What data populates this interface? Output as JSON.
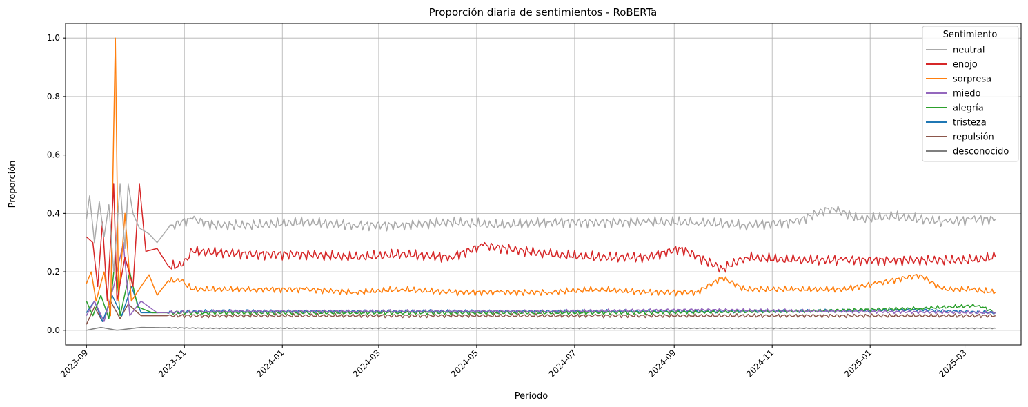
{
  "chart_data": {
    "type": "line",
    "title": "Proporción diaria de sentimientos - RoBERTa",
    "xlabel": "Periodo",
    "ylabel": "Proporción",
    "x_tick_labels": [
      "2023-09",
      "2023-11",
      "2024-01",
      "2024-03",
      "2024-05",
      "2024-07",
      "2024-09",
      "2024-11",
      "2025-01",
      "2025-03"
    ],
    "y_tick_labels": [
      "0.0",
      "0.2",
      "0.4",
      "0.6",
      "0.8",
      "1.0"
    ],
    "y_ticks": [
      0,
      0.2,
      0.4,
      0.6,
      0.8,
      1.0
    ],
    "xlim": [
      "2023-08-19",
      "2025-04-05"
    ],
    "ylim": [
      -0.05,
      1.05
    ],
    "x_start": "2023-09-01",
    "x_end": "2025-03-20",
    "grid": true,
    "legend": {
      "title": "Sentimiento",
      "position": "top-right"
    },
    "series": [
      {
        "name": "neutral",
        "color": "#aaaaaa",
        "points": [
          [
            "2023-09-01",
            0.38
          ],
          [
            "2023-09-03",
            0.46
          ],
          [
            "2023-09-06",
            0.3
          ],
          [
            "2023-09-09",
            0.44
          ],
          [
            "2023-09-12",
            0.32
          ],
          [
            "2023-09-15",
            0.43
          ],
          [
            "2023-09-18",
            0.2
          ],
          [
            "2023-09-22",
            0.5
          ],
          [
            "2023-09-25",
            0.28
          ],
          [
            "2023-09-27",
            0.5
          ],
          [
            "2023-09-30",
            0.4
          ],
          [
            "2023-10-04",
            0.35
          ],
          [
            "2023-10-10",
            0.33
          ],
          [
            "2023-10-15",
            0.3
          ],
          [
            "2023-10-22",
            0.35
          ],
          [
            "2023-10-30",
            0.37
          ],
          [
            "2023-11-06",
            0.38
          ],
          [
            "2023-11-20",
            0.36
          ],
          [
            "2023-12-15",
            0.36
          ],
          [
            "2024-01-15",
            0.37
          ],
          [
            "2024-02-15",
            0.36
          ],
          [
            "2024-03-15",
            0.36
          ],
          [
            "2024-04-15",
            0.37
          ],
          [
            "2024-05-15",
            0.36
          ],
          [
            "2024-06-15",
            0.37
          ],
          [
            "2024-07-15",
            0.37
          ],
          [
            "2024-08-15",
            0.37
          ],
          [
            "2024-09-15",
            0.37
          ],
          [
            "2024-10-15",
            0.36
          ],
          [
            "2024-11-15",
            0.37
          ],
          [
            "2024-12-08",
            0.42
          ],
          [
            "2024-12-25",
            0.38
          ],
          [
            "2025-01-15",
            0.39
          ],
          [
            "2025-02-01",
            0.38
          ],
          [
            "2025-02-18",
            0.37
          ],
          [
            "2025-03-05",
            0.38
          ],
          [
            "2025-03-20",
            0.38
          ]
        ]
      },
      {
        "name": "enojo",
        "color": "#d62728",
        "points": [
          [
            "2023-09-01",
            0.32
          ],
          [
            "2023-09-05",
            0.3
          ],
          [
            "2023-09-08",
            0.15
          ],
          [
            "2023-09-11",
            0.37
          ],
          [
            "2023-09-14",
            0.1
          ],
          [
            "2023-09-18",
            0.5
          ],
          [
            "2023-09-20",
            0.1
          ],
          [
            "2023-09-25",
            0.25
          ],
          [
            "2023-09-30",
            0.15
          ],
          [
            "2023-10-04",
            0.5
          ],
          [
            "2023-10-08",
            0.27
          ],
          [
            "2023-10-15",
            0.28
          ],
          [
            "2023-10-22",
            0.22
          ],
          [
            "2023-10-30",
            0.22
          ],
          [
            "2023-11-06",
            0.27
          ],
          [
            "2023-12-15",
            0.26
          ],
          [
            "2024-01-15",
            0.26
          ],
          [
            "2024-02-15",
            0.25
          ],
          [
            "2024-03-15",
            0.26
          ],
          [
            "2024-04-15",
            0.25
          ],
          [
            "2024-05-05",
            0.29
          ],
          [
            "2024-06-15",
            0.26
          ],
          [
            "2024-07-15",
            0.25
          ],
          [
            "2024-08-15",
            0.25
          ],
          [
            "2024-09-05",
            0.28
          ],
          [
            "2024-10-01",
            0.21
          ],
          [
            "2024-10-15",
            0.25
          ],
          [
            "2024-11-15",
            0.24
          ],
          [
            "2024-12-15",
            0.24
          ],
          [
            "2025-01-15",
            0.24
          ],
          [
            "2025-02-15",
            0.24
          ],
          [
            "2025-03-05",
            0.24
          ],
          [
            "2025-03-20",
            0.25
          ]
        ]
      },
      {
        "name": "sorpresa",
        "color": "#ff7f0e",
        "points": [
          [
            "2023-09-01",
            0.16
          ],
          [
            "2023-09-04",
            0.2
          ],
          [
            "2023-09-07",
            0.1
          ],
          [
            "2023-09-12",
            0.2
          ],
          [
            "2023-09-16",
            0.05
          ],
          [
            "2023-09-19",
            1.0
          ],
          [
            "2023-09-21",
            0.1
          ],
          [
            "2023-09-25",
            0.4
          ],
          [
            "2023-09-29",
            0.1
          ],
          [
            "2023-10-05",
            0.15
          ],
          [
            "2023-10-10",
            0.19
          ],
          [
            "2023-10-15",
            0.12
          ],
          [
            "2023-10-22",
            0.17
          ],
          [
            "2023-10-30",
            0.17
          ],
          [
            "2023-11-06",
            0.14
          ],
          [
            "2023-12-15",
            0.14
          ],
          [
            "2024-01-15",
            0.14
          ],
          [
            "2024-02-15",
            0.13
          ],
          [
            "2024-03-15",
            0.14
          ],
          [
            "2024-04-15",
            0.13
          ],
          [
            "2024-05-15",
            0.13
          ],
          [
            "2024-06-15",
            0.13
          ],
          [
            "2024-07-15",
            0.14
          ],
          [
            "2024-08-15",
            0.13
          ],
          [
            "2024-09-15",
            0.13
          ],
          [
            "2024-10-01",
            0.18
          ],
          [
            "2024-10-15",
            0.14
          ],
          [
            "2024-11-15",
            0.14
          ],
          [
            "2024-12-15",
            0.14
          ],
          [
            "2025-01-05",
            0.16
          ],
          [
            "2025-02-01",
            0.19
          ],
          [
            "2025-02-15",
            0.14
          ],
          [
            "2025-03-05",
            0.14
          ],
          [
            "2025-03-20",
            0.13
          ]
        ]
      },
      {
        "name": "miedo",
        "color": "#9467bd",
        "points": [
          [
            "2023-09-01",
            0.05
          ],
          [
            "2023-09-06",
            0.1
          ],
          [
            "2023-09-12",
            0.03
          ],
          [
            "2023-09-18",
            0.15
          ],
          [
            "2023-09-24",
            0.3
          ],
          [
            "2023-09-28",
            0.05
          ],
          [
            "2023-10-05",
            0.1
          ],
          [
            "2023-10-15",
            0.06
          ],
          [
            "2023-11-15",
            0.065
          ],
          [
            "2024-02-15",
            0.065
          ],
          [
            "2024-06-15",
            0.065
          ],
          [
            "2024-09-15",
            0.07
          ],
          [
            "2024-12-15",
            0.065
          ],
          [
            "2025-03-20",
            0.06
          ]
        ]
      },
      {
        "name": "alegría",
        "color": "#2ca02c",
        "points": [
          [
            "2023-09-01",
            0.1
          ],
          [
            "2023-09-05",
            0.05
          ],
          [
            "2023-09-10",
            0.12
          ],
          [
            "2023-09-15",
            0.04
          ],
          [
            "2023-09-19",
            0.25
          ],
          [
            "2023-09-22",
            0.05
          ],
          [
            "2023-09-28",
            0.2
          ],
          [
            "2023-10-03",
            0.08
          ],
          [
            "2023-10-12",
            0.06
          ],
          [
            "2023-11-15",
            0.06
          ],
          [
            "2024-03-15",
            0.06
          ],
          [
            "2024-07-15",
            0.06
          ],
          [
            "2024-11-15",
            0.065
          ],
          [
            "2025-02-01",
            0.075
          ],
          [
            "2025-03-10",
            0.085
          ],
          [
            "2025-03-20",
            0.06
          ]
        ]
      },
      {
        "name": "tristeza",
        "color": "#1f77b4",
        "points": [
          [
            "2023-09-01",
            0.06
          ],
          [
            "2023-09-06",
            0.1
          ],
          [
            "2023-09-11",
            0.03
          ],
          [
            "2023-09-17",
            0.12
          ],
          [
            "2023-09-23",
            0.05
          ],
          [
            "2023-09-29",
            0.15
          ],
          [
            "2023-10-05",
            0.06
          ],
          [
            "2023-10-15",
            0.06
          ],
          [
            "2023-11-15",
            0.065
          ],
          [
            "2024-03-15",
            0.065
          ],
          [
            "2024-07-15",
            0.065
          ],
          [
            "2024-11-15",
            0.065
          ],
          [
            "2025-02-01",
            0.07
          ],
          [
            "2025-03-20",
            0.06
          ]
        ]
      },
      {
        "name": "repulsión",
        "color": "#8c564b",
        "points": [
          [
            "2023-09-01",
            0.02
          ],
          [
            "2023-09-06",
            0.08
          ],
          [
            "2023-09-11",
            0.03
          ],
          [
            "2023-09-16",
            0.1
          ],
          [
            "2023-09-22",
            0.04
          ],
          [
            "2023-09-27",
            0.09
          ],
          [
            "2023-10-05",
            0.05
          ],
          [
            "2023-10-15",
            0.05
          ],
          [
            "2023-11-15",
            0.05
          ],
          [
            "2024-03-15",
            0.05
          ],
          [
            "2024-07-15",
            0.05
          ],
          [
            "2024-11-15",
            0.05
          ],
          [
            "2025-02-15",
            0.05
          ],
          [
            "2025-03-20",
            0.05
          ]
        ]
      },
      {
        "name": "desconocido",
        "color": "#7f7f7f",
        "points": [
          [
            "2023-09-01",
            0.0
          ],
          [
            "2023-09-10",
            0.01
          ],
          [
            "2023-09-20",
            0.0
          ],
          [
            "2023-10-05",
            0.01
          ],
          [
            "2023-11-15",
            0.007
          ],
          [
            "2024-03-15",
            0.007
          ],
          [
            "2024-07-15",
            0.007
          ],
          [
            "2024-11-15",
            0.007
          ],
          [
            "2025-02-15",
            0.007
          ],
          [
            "2025-03-20",
            0.007
          ]
        ]
      }
    ]
  }
}
